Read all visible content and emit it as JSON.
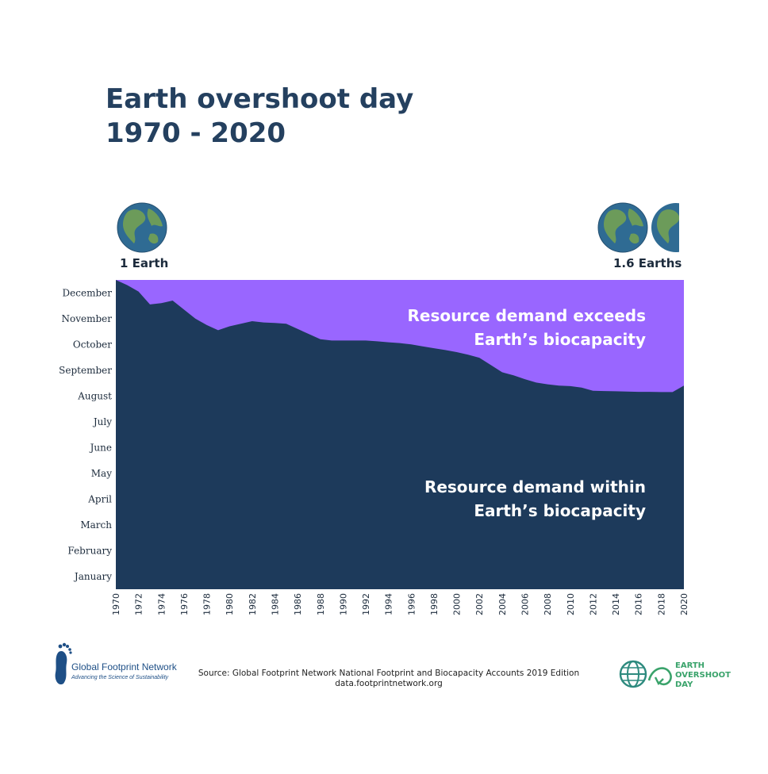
{
  "title": {
    "line1": "Earth overshoot day",
    "line2": "1970 - 2020"
  },
  "globes": {
    "left_label": "1 Earth",
    "right_label": "1.6 Earths"
  },
  "annotations": {
    "exceeds": [
      "Resource demand exceeds",
      "Earth’s biocapacity"
    ],
    "within": [
      "Resource demand within",
      "Earth’s biocapacity"
    ]
  },
  "colors": {
    "within": "#1d3a5b",
    "exceeds": "#9966ff",
    "title": "#24405f",
    "eod_green": "#3aa36b",
    "gfn_blue": "#1e4f86"
  },
  "chart_data": {
    "type": "area",
    "title": "Earth overshoot day 1970 - 2020",
    "x": [
      1970,
      1971,
      1972,
      1973,
      1974,
      1975,
      1976,
      1977,
      1978,
      1979,
      1980,
      1981,
      1982,
      1983,
      1984,
      1985,
      1986,
      1987,
      1988,
      1989,
      1990,
      1991,
      1992,
      1993,
      1994,
      1995,
      1996,
      1997,
      1998,
      1999,
      2000,
      2001,
      2002,
      2003,
      2004,
      2005,
      2006,
      2007,
      2008,
      2009,
      2010,
      2011,
      2012,
      2013,
      2014,
      2015,
      2016,
      2017,
      2018,
      2019,
      2020
    ],
    "y_month_fraction": [
      12.0,
      11.8,
      11.55,
      11.05,
      11.1,
      11.2,
      10.85,
      10.5,
      10.25,
      10.05,
      10.2,
      10.3,
      10.4,
      10.35,
      10.33,
      10.3,
      10.1,
      9.9,
      9.7,
      9.65,
      9.65,
      9.65,
      9.65,
      9.62,
      9.58,
      9.55,
      9.5,
      9.42,
      9.35,
      9.28,
      9.2,
      9.1,
      8.98,
      8.7,
      8.42,
      8.3,
      8.15,
      8.02,
      7.95,
      7.9,
      7.88,
      7.82,
      7.7,
      7.69,
      7.68,
      7.67,
      7.66,
      7.66,
      7.65,
      7.65,
      7.9
    ],
    "y_unit": "months elapsed in the year (0 = start of January, 12 = end of December)",
    "series": [
      {
        "name": "Resource demand within Earth’s biocapacity"
      },
      {
        "name": "Resource demand exceeds Earth’s biocapacity"
      }
    ],
    "x_ticks": [
      "1970",
      "1972",
      "1974",
      "1976",
      "1978",
      "1980",
      "1982",
      "1984",
      "1986",
      "1988",
      "1990",
      "1992",
      "1994",
      "1996",
      "1998",
      "2000",
      "2002",
      "2004",
      "2006",
      "2008",
      "2010",
      "2012",
      "2014",
      "2016",
      "2018",
      "2020"
    ],
    "y_ticks": [
      "January",
      "February",
      "March",
      "April",
      "May",
      "June",
      "July",
      "August",
      "September",
      "October",
      "November",
      "December"
    ],
    "xlim": [
      1970,
      2020
    ],
    "ylim": [
      0,
      12
    ]
  },
  "footer": {
    "gfn_name": "Global Footprint Network",
    "gfn_tagline": "Advancing the Science of Sustainability",
    "source_line1": "Source: Global Footprint Network National Footprint and Biocapacity Accounts 2019 Edition",
    "source_line2": "data.footprintnetwork.org",
    "eod_lines": [
      "EARTH",
      "OVERSHOOT",
      "DAY"
    ]
  }
}
